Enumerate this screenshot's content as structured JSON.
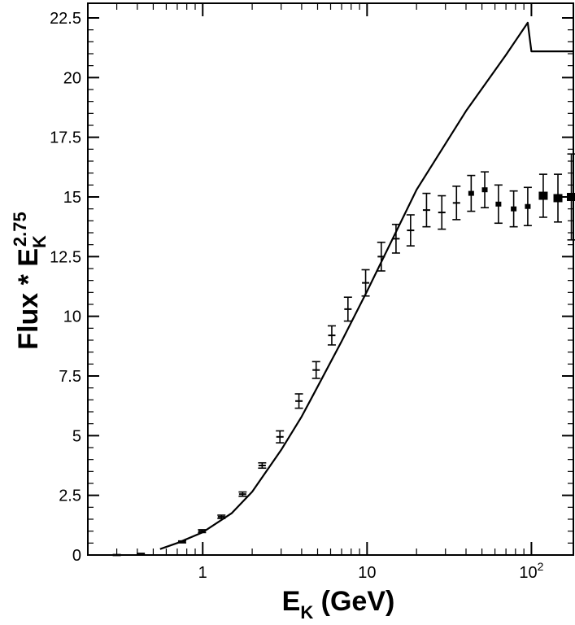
{
  "chart_data": {
    "type": "scatter",
    "x_scale": "log",
    "xlim": [
      0.2,
      180
    ],
    "ylim": [
      0,
      22.5
    ],
    "ylabel": {
      "base": "Flux * E",
      "subscript": "K",
      "superscript": "2.75"
    },
    "xlabel": {
      "base": "E",
      "subscript": "K",
      "suffix": " (GeV)"
    },
    "x_ticks": [
      {
        "value": 1,
        "label": "1"
      },
      {
        "value": 10,
        "label": "10"
      },
      {
        "value": 100,
        "label": "10",
        "exponent": "2"
      }
    ],
    "y_ticks": [
      {
        "value": 0,
        "label": "0"
      },
      {
        "value": 2.5,
        "label": "2.5"
      },
      {
        "value": 5,
        "label": "5"
      },
      {
        "value": 7.5,
        "label": "7.5"
      },
      {
        "value": 10,
        "label": "10"
      },
      {
        "value": 12.5,
        "label": "12.5"
      },
      {
        "value": 15,
        "label": "15"
      },
      {
        "value": 17.5,
        "label": "17.5"
      },
      {
        "value": 20,
        "label": "20"
      },
      {
        "value": 22.5,
        "label": "22.5"
      }
    ],
    "series": [
      {
        "kind": "points-with-errors",
        "points": [
          {
            "x": 0.3,
            "y": 0.0,
            "err": 0.02
          },
          {
            "x": 0.42,
            "y": 0.05,
            "err": 0.02
          },
          {
            "x": 0.75,
            "y": 0.55,
            "err": 0.04
          },
          {
            "x": 0.99,
            "y": 1.0,
            "err": 0.06
          },
          {
            "x": 1.3,
            "y": 1.6,
            "err": 0.07
          },
          {
            "x": 1.75,
            "y": 2.55,
            "err": 0.09
          },
          {
            "x": 2.3,
            "y": 3.75,
            "err": 0.11
          },
          {
            "x": 2.95,
            "y": 4.95,
            "err": 0.25
          },
          {
            "x": 3.85,
            "y": 6.45,
            "err": 0.3
          },
          {
            "x": 4.9,
            "y": 7.75,
            "err": 0.35
          },
          {
            "x": 6.1,
            "y": 9.2,
            "err": 0.4
          },
          {
            "x": 7.65,
            "y": 10.3,
            "err": 0.5
          },
          {
            "x": 9.8,
            "y": 11.4,
            "err": 0.55
          },
          {
            "x": 12.2,
            "y": 12.5,
            "err": 0.6
          },
          {
            "x": 15.0,
            "y": 13.25,
            "err": 0.6
          },
          {
            "x": 18.4,
            "y": 13.6,
            "err": 0.65
          },
          {
            "x": 23.0,
            "y": 14.45,
            "err": 0.7
          },
          {
            "x": 28.5,
            "y": 14.35,
            "err": 0.7
          },
          {
            "x": 35.0,
            "y": 14.75,
            "err": 0.7
          },
          {
            "x": 43.0,
            "y": 15.15,
            "err": 0.75
          },
          {
            "x": 52.0,
            "y": 15.3,
            "err": 0.75
          },
          {
            "x": 63.0,
            "y": 14.7,
            "err": 0.8
          },
          {
            "x": 78.0,
            "y": 14.5,
            "err": 0.75
          },
          {
            "x": 95.0,
            "y": 14.6,
            "err": 0.8
          },
          {
            "x": 118.0,
            "y": 15.05,
            "err": 0.9
          },
          {
            "x": 145.0,
            "y": 14.95,
            "err": 1.0
          },
          {
            "x": 175.0,
            "y": 15.0,
            "err": 1.8
          }
        ]
      },
      {
        "kind": "line",
        "points": [
          {
            "x": 0.55,
            "y": 0.25
          },
          {
            "x": 0.7,
            "y": 0.5
          },
          {
            "x": 1.0,
            "y": 0.95
          },
          {
            "x": 1.5,
            "y": 1.75
          },
          {
            "x": 2.0,
            "y": 2.65
          },
          {
            "x": 3.0,
            "y": 4.4
          },
          {
            "x": 4.0,
            "y": 5.8
          },
          {
            "x": 5.0,
            "y": 7.05
          },
          {
            "x": 7.0,
            "y": 8.95
          },
          {
            "x": 10.0,
            "y": 11.05
          },
          {
            "x": 20.0,
            "y": 15.3
          },
          {
            "x": 40.0,
            "y": 18.6
          },
          {
            "x": 70.0,
            "y": 20.95
          },
          {
            "x": 95.0,
            "y": 22.3
          },
          {
            "x": 100.0,
            "y": 21.1
          },
          {
            "x": 180.0,
            "y": 21.1
          }
        ]
      }
    ]
  }
}
